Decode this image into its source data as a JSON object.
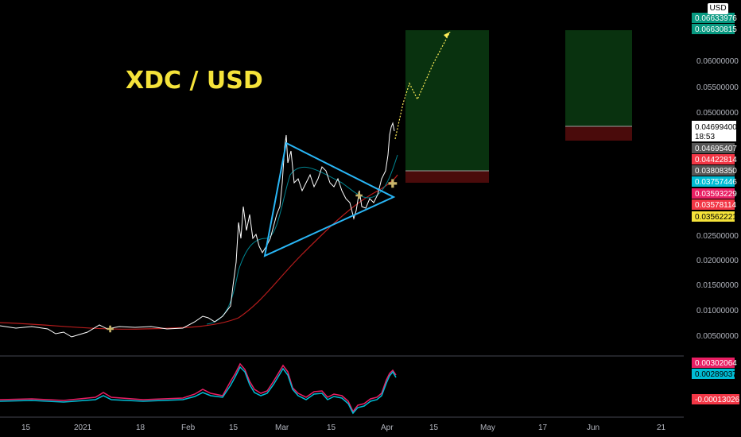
{
  "chart_data": {
    "type": "line",
    "title": "XDC / USD",
    "currency": "USD",
    "y_axis": {
      "range": [
        0.0,
        0.068
      ],
      "ticks": [
        "0.00500000",
        "0.01000000",
        "0.01500000",
        "0.02000000",
        "0.02500000",
        "0.05000000",
        "0.05500000",
        "0.06000000"
      ]
    },
    "x_axis": {
      "ticks": [
        "15",
        "2021",
        "18",
        "Feb",
        "15",
        "Mar",
        "15",
        "Apr",
        "15",
        "May",
        "17",
        "Jun",
        "21"
      ]
    },
    "price_labels": [
      {
        "value": "0.06633976",
        "color": "#ffffff",
        "bg": "#000000"
      },
      {
        "value": "0.06630815",
        "color": "#ffffff",
        "bg": "#089981"
      },
      {
        "value": "0.04699400",
        "sub": "18:53",
        "color": "#000000",
        "bg": "#ffffff"
      },
      {
        "value": "0.04695407",
        "color": "#ffffff",
        "bg": "#555555"
      },
      {
        "value": "0.04422814",
        "color": "#ffffff",
        "bg": "#f23645"
      },
      {
        "value": "0.03808350",
        "color": "#ffffff",
        "bg": "#555555"
      },
      {
        "value": "0.03757446",
        "color": "#ffffff",
        "bg": "#00bcd4"
      },
      {
        "value": "0.03593229",
        "color": "#ffffff",
        "bg": "#e91e63"
      },
      {
        "value": "0.03578114",
        "color": "#ffffff",
        "bg": "#f23645"
      },
      {
        "value": "0.03562221",
        "color": "#000000",
        "bg": "#f5e33a"
      }
    ],
    "series": [
      {
        "name": "price",
        "color": "#ffffff",
        "x": [
          "2020-12-08",
          "2020-12-20",
          "2021-01-01",
          "2021-01-10",
          "2021-01-20",
          "2021-02-01",
          "2021-02-10",
          "2021-02-15",
          "2021-02-18",
          "2021-02-22",
          "2021-02-26",
          "2021-03-01",
          "2021-03-05",
          "2021-03-10",
          "2021-03-15",
          "2021-03-20",
          "2021-03-25",
          "2021-03-28",
          "2021-04-01",
          "2021-04-04"
        ],
        "values": [
          0.0065,
          0.0064,
          0.006,
          0.007,
          0.0068,
          0.0066,
          0.0085,
          0.014,
          0.029,
          0.027,
          0.025,
          0.045,
          0.041,
          0.04,
          0.038,
          0.033,
          0.03,
          0.032,
          0.037,
          0.047
        ]
      },
      {
        "name": "ma-short",
        "color": "#00bcd4",
        "x": [
          "2021-02-15",
          "2021-02-22",
          "2021-03-01",
          "2021-03-10",
          "2021-03-20",
          "2021-04-04"
        ],
        "values": [
          0.009,
          0.02,
          0.031,
          0.036,
          0.035,
          0.041
        ]
      },
      {
        "name": "ma-long",
        "color": "#b71c1c",
        "x": [
          "2020-12-08",
          "2021-01-20",
          "2021-02-15",
          "2021-03-01",
          "2021-03-20",
          "2021-04-04"
        ],
        "values": [
          0.007,
          0.0065,
          0.009,
          0.016,
          0.03,
          0.038
        ]
      }
    ],
    "oscillator": {
      "labels": [
        "0.00302064",
        "0.00289037",
        "-0.00013026"
      ],
      "colors": [
        "#e91e63",
        "#00bcd4",
        "#f23645"
      ]
    }
  }
}
